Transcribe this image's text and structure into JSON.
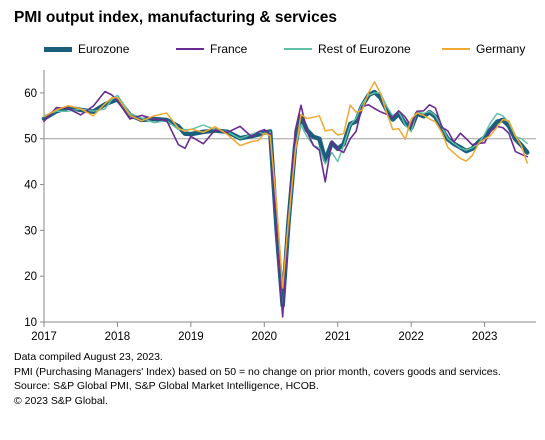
{
  "title": "PMI output index, manufacturing & services",
  "notes": [
    "Data compiled August 23, 2023.",
    "PMI (Purchasing Managers' Index) based on 50 = no change on prior month, covers goods and services.",
    "Source: S&P Global PMI, S&P Global Market Intelligence, HCOB.",
    "© 2023 S&P Global."
  ],
  "chart_data": {
    "type": "line",
    "title": "PMI output index, manufacturing & services",
    "xlabel": "",
    "ylabel": "",
    "xlim": [
      2017.0,
      2023.7
    ],
    "ylim": [
      10,
      65
    ],
    "yticks": [
      10,
      20,
      30,
      40,
      50,
      60
    ],
    "xtick_labels": [
      "2017",
      "2018",
      "2019",
      "2020",
      "2021",
      "2022",
      "2023"
    ],
    "reference_line": 50,
    "grid": false,
    "legend_position": "top",
    "series": [
      {
        "name": "Eurozone",
        "color": "#1b5f7c",
        "values": [
          [
            2017.0,
            54.4
          ],
          [
            2017.17,
            56.0
          ],
          [
            2017.33,
            56.8
          ],
          [
            2017.5,
            56.3
          ],
          [
            2017.67,
            55.9
          ],
          [
            2017.83,
            57.5
          ],
          [
            2017.92,
            58.1
          ],
          [
            2018.0,
            58.6
          ],
          [
            2018.17,
            55.2
          ],
          [
            2018.33,
            54.1
          ],
          [
            2018.5,
            54.3
          ],
          [
            2018.67,
            54.1
          ],
          [
            2018.83,
            52.7
          ],
          [
            2018.92,
            51.1
          ],
          [
            2019.0,
            51.0
          ],
          [
            2019.17,
            51.5
          ],
          [
            2019.33,
            51.8
          ],
          [
            2019.5,
            51.5
          ],
          [
            2019.67,
            50.1
          ],
          [
            2019.83,
            50.6
          ],
          [
            2019.92,
            50.9
          ],
          [
            2020.0,
            51.3
          ],
          [
            2020.08,
            51.6
          ],
          [
            2020.17,
            29.7
          ],
          [
            2020.25,
            13.6
          ],
          [
            2020.33,
            31.9
          ],
          [
            2020.42,
            48.5
          ],
          [
            2020.5,
            54.9
          ],
          [
            2020.58,
            51.9
          ],
          [
            2020.67,
            50.4
          ],
          [
            2020.75,
            50.0
          ],
          [
            2020.83,
            45.3
          ],
          [
            2020.92,
            49.1
          ],
          [
            2021.0,
            47.8
          ],
          [
            2021.08,
            48.8
          ],
          [
            2021.17,
            53.2
          ],
          [
            2021.25,
            53.8
          ],
          [
            2021.33,
            57.1
          ],
          [
            2021.42,
            59.5
          ],
          [
            2021.5,
            60.2
          ],
          [
            2021.58,
            59.0
          ],
          [
            2021.67,
            56.2
          ],
          [
            2021.75,
            54.2
          ],
          [
            2021.83,
            55.4
          ],
          [
            2021.92,
            53.3
          ],
          [
            2022.0,
            52.3
          ],
          [
            2022.08,
            55.5
          ],
          [
            2022.17,
            54.9
          ],
          [
            2022.25,
            55.8
          ],
          [
            2022.33,
            54.8
          ],
          [
            2022.42,
            52.0
          ],
          [
            2022.5,
            49.9
          ],
          [
            2022.58,
            48.9
          ],
          [
            2022.67,
            48.1
          ],
          [
            2022.75,
            47.3
          ],
          [
            2022.83,
            47.8
          ],
          [
            2022.92,
            49.3
          ],
          [
            2023.0,
            50.3
          ],
          [
            2023.08,
            52.0
          ],
          [
            2023.17,
            53.7
          ],
          [
            2023.25,
            54.1
          ],
          [
            2023.33,
            52.8
          ],
          [
            2023.42,
            49.9
          ],
          [
            2023.5,
            48.6
          ],
          [
            2023.58,
            47.0
          ]
        ]
      },
      {
        "name": "France",
        "color": "#6b2c91",
        "values": [
          [
            2017.0,
            53.8
          ],
          [
            2017.17,
            56.8
          ],
          [
            2017.33,
            56.6
          ],
          [
            2017.5,
            55.2
          ],
          [
            2017.67,
            57.1
          ],
          [
            2017.83,
            60.3
          ],
          [
            2017.92,
            59.6
          ],
          [
            2018.0,
            58.3
          ],
          [
            2018.17,
            54.3
          ],
          [
            2018.33,
            55.1
          ],
          [
            2018.5,
            54.3
          ],
          [
            2018.67,
            54.0
          ],
          [
            2018.83,
            48.7
          ],
          [
            2018.92,
            47.9
          ],
          [
            2019.0,
            50.5
          ],
          [
            2019.17,
            48.9
          ],
          [
            2019.33,
            51.9
          ],
          [
            2019.5,
            51.4
          ],
          [
            2019.67,
            52.7
          ],
          [
            2019.83,
            50.4
          ],
          [
            2019.92,
            51.5
          ],
          [
            2020.0,
            52.0
          ],
          [
            2020.08,
            51.0
          ],
          [
            2020.17,
            28.9
          ],
          [
            2020.25,
            11.1
          ],
          [
            2020.33,
            32.1
          ],
          [
            2020.42,
            51.7
          ],
          [
            2020.5,
            57.3
          ],
          [
            2020.58,
            51.6
          ],
          [
            2020.67,
            48.5
          ],
          [
            2020.75,
            47.5
          ],
          [
            2020.83,
            40.6
          ],
          [
            2020.92,
            49.5
          ],
          [
            2021.0,
            47.7
          ],
          [
            2021.08,
            47.0
          ],
          [
            2021.17,
            50.0
          ],
          [
            2021.25,
            51.6
          ],
          [
            2021.33,
            57.0
          ],
          [
            2021.42,
            57.4
          ],
          [
            2021.5,
            56.6
          ],
          [
            2021.58,
            55.9
          ],
          [
            2021.67,
            55.3
          ],
          [
            2021.75,
            54.7
          ],
          [
            2021.83,
            56.1
          ],
          [
            2021.92,
            54.7
          ],
          [
            2022.0,
            52.7
          ],
          [
            2022.08,
            56.0
          ],
          [
            2022.17,
            56.1
          ],
          [
            2022.25,
            57.4
          ],
          [
            2022.33,
            56.7
          ],
          [
            2022.42,
            52.5
          ],
          [
            2022.5,
            51.7
          ],
          [
            2022.58,
            49.3
          ],
          [
            2022.67,
            51.2
          ],
          [
            2022.75,
            50.0
          ],
          [
            2022.83,
            48.7
          ],
          [
            2022.92,
            49.0
          ],
          [
            2023.0,
            49.1
          ],
          [
            2023.08,
            51.7
          ],
          [
            2023.17,
            52.7
          ],
          [
            2023.25,
            52.4
          ],
          [
            2023.33,
            51.2
          ],
          [
            2023.42,
            47.2
          ],
          [
            2023.5,
            46.6
          ],
          [
            2023.58,
            46.1
          ]
        ]
      },
      {
        "name": "Rest of Eurozone",
        "color": "#5fc0a5",
        "values": [
          [
            2017.0,
            55.0
          ],
          [
            2017.17,
            56.0
          ],
          [
            2017.33,
            56.0
          ],
          [
            2017.5,
            56.5
          ],
          [
            2017.67,
            56.0
          ],
          [
            2017.83,
            56.5
          ],
          [
            2017.92,
            58.5
          ],
          [
            2018.0,
            59.5
          ],
          [
            2018.17,
            55.5
          ],
          [
            2018.33,
            54.5
          ],
          [
            2018.5,
            53.5
          ],
          [
            2018.67,
            54.0
          ],
          [
            2018.83,
            52.0
          ],
          [
            2018.92,
            52.0
          ],
          [
            2019.0,
            52.0
          ],
          [
            2019.17,
            53.0
          ],
          [
            2019.33,
            52.0
          ],
          [
            2019.5,
            51.5
          ],
          [
            2019.67,
            50.0
          ],
          [
            2019.83,
            51.0
          ],
          [
            2019.92,
            51.5
          ],
          [
            2020.0,
            51.0
          ],
          [
            2020.08,
            51.5
          ],
          [
            2020.17,
            29.0
          ],
          [
            2020.25,
            12.0
          ],
          [
            2020.33,
            31.0
          ],
          [
            2020.42,
            48.0
          ],
          [
            2020.5,
            53.0
          ],
          [
            2020.58,
            50.5
          ],
          [
            2020.67,
            48.5
          ],
          [
            2020.75,
            48.0
          ],
          [
            2020.83,
            44.5
          ],
          [
            2020.92,
            47.0
          ],
          [
            2021.0,
            45.0
          ],
          [
            2021.08,
            48.5
          ],
          [
            2021.17,
            53.0
          ],
          [
            2021.25,
            54.5
          ],
          [
            2021.33,
            57.5
          ],
          [
            2021.42,
            59.5
          ],
          [
            2021.5,
            60.0
          ],
          [
            2021.58,
            60.0
          ],
          [
            2021.67,
            57.0
          ],
          [
            2021.75,
            55.0
          ],
          [
            2021.83,
            56.0
          ],
          [
            2021.92,
            53.0
          ],
          [
            2022.0,
            51.5
          ],
          [
            2022.08,
            56.0
          ],
          [
            2022.17,
            55.5
          ],
          [
            2022.25,
            56.0
          ],
          [
            2022.33,
            55.0
          ],
          [
            2022.42,
            52.5
          ],
          [
            2022.5,
            50.0
          ],
          [
            2022.58,
            49.0
          ],
          [
            2022.67,
            48.0
          ],
          [
            2022.75,
            47.5
          ],
          [
            2022.83,
            48.0
          ],
          [
            2022.92,
            49.0
          ],
          [
            2023.0,
            51.0
          ],
          [
            2023.08,
            53.5
          ],
          [
            2023.17,
            55.5
          ],
          [
            2023.25,
            55.0
          ],
          [
            2023.33,
            53.5
          ],
          [
            2023.42,
            50.5
          ],
          [
            2023.5,
            50.0
          ],
          [
            2023.58,
            49.0
          ]
        ]
      },
      {
        "name": "Germany",
        "color": "#f0a830",
        "values": [
          [
            2017.0,
            54.8
          ],
          [
            2017.17,
            56.3
          ],
          [
            2017.33,
            57.2
          ],
          [
            2017.5,
            56.5
          ],
          [
            2017.67,
            55.0
          ],
          [
            2017.83,
            57.6
          ],
          [
            2017.92,
            58.9
          ],
          [
            2018.0,
            59.0
          ],
          [
            2018.17,
            55.1
          ],
          [
            2018.33,
            53.9
          ],
          [
            2018.5,
            55.0
          ],
          [
            2018.67,
            55.6
          ],
          [
            2018.83,
            52.3
          ],
          [
            2018.92,
            51.6
          ],
          [
            2019.0,
            52.1
          ],
          [
            2019.17,
            51.4
          ],
          [
            2019.33,
            52.6
          ],
          [
            2019.5,
            50.9
          ],
          [
            2019.67,
            48.5
          ],
          [
            2019.83,
            49.4
          ],
          [
            2019.92,
            49.6
          ],
          [
            2020.0,
            51.2
          ],
          [
            2020.08,
            50.7
          ],
          [
            2020.17,
            35.0
          ],
          [
            2020.25,
            17.4
          ],
          [
            2020.33,
            32.3
          ],
          [
            2020.42,
            47.0
          ],
          [
            2020.5,
            55.3
          ],
          [
            2020.58,
            54.4
          ],
          [
            2020.67,
            54.7
          ],
          [
            2020.75,
            55.0
          ],
          [
            2020.83,
            51.7
          ],
          [
            2020.92,
            52.0
          ],
          [
            2021.0,
            50.8
          ],
          [
            2021.08,
            51.1
          ],
          [
            2021.17,
            57.3
          ],
          [
            2021.25,
            55.8
          ],
          [
            2021.33,
            56.2
          ],
          [
            2021.42,
            60.1
          ],
          [
            2021.5,
            62.4
          ],
          [
            2021.58,
            60.0
          ],
          [
            2021.67,
            55.5
          ],
          [
            2021.75,
            52.0
          ],
          [
            2021.83,
            52.2
          ],
          [
            2021.92,
            49.9
          ],
          [
            2022.0,
            54.3
          ],
          [
            2022.08,
            55.6
          ],
          [
            2022.17,
            55.1
          ],
          [
            2022.25,
            54.3
          ],
          [
            2022.33,
            53.7
          ],
          [
            2022.42,
            51.3
          ],
          [
            2022.5,
            48.1
          ],
          [
            2022.58,
            46.9
          ],
          [
            2022.67,
            45.7
          ],
          [
            2022.75,
            45.1
          ],
          [
            2022.83,
            46.3
          ],
          [
            2022.92,
            49.0
          ],
          [
            2023.0,
            49.9
          ],
          [
            2023.08,
            50.7
          ],
          [
            2023.17,
            52.6
          ],
          [
            2023.25,
            54.2
          ],
          [
            2023.33,
            53.9
          ],
          [
            2023.42,
            50.6
          ],
          [
            2023.5,
            48.5
          ],
          [
            2023.58,
            44.7
          ]
        ]
      }
    ]
  }
}
